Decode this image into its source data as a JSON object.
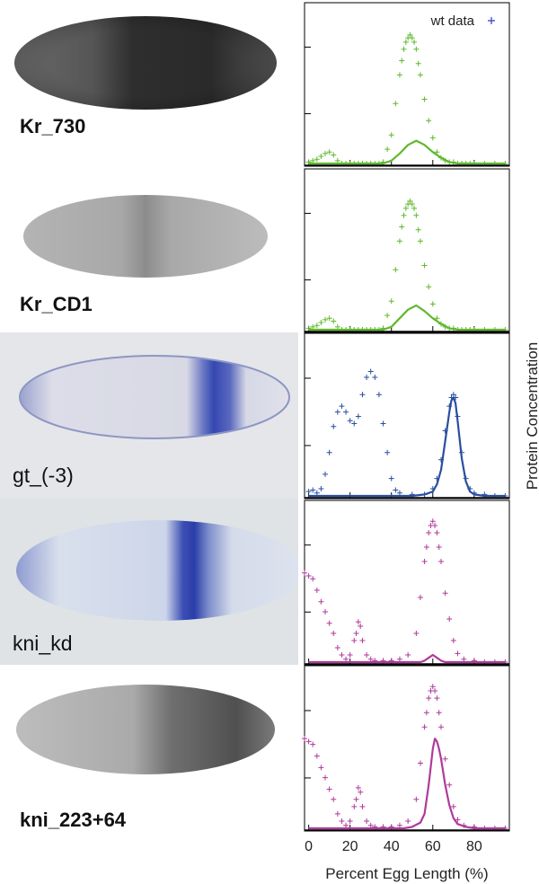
{
  "colors": {
    "green": "#5fb82e",
    "blue": "#2a4fa0",
    "magenta": "#b03a9c",
    "wt_marker": "#2a3fbf"
  },
  "legend": {
    "label": "wt data"
  },
  "axes": {
    "xlabel": "Percent Egg Length (%)",
    "ylabel": "Protein Concentration"
  },
  "panels": [
    {
      "label": "Kr_730",
      "photo_style": "dark"
    },
    {
      "label": "Kr_CD1",
      "photo_style": "light"
    },
    {
      "label": "gt_(-3)",
      "photo_style": "blue_band_70"
    },
    {
      "label": "kni_kd",
      "photo_style": "blue_band_60"
    },
    {
      "label": "kni_223+64",
      "photo_style": "gray_posterior"
    }
  ],
  "chart_data": [
    {
      "type": "line",
      "panel": "Kr_730",
      "color": "green",
      "x_ticks": [
        0,
        20,
        40,
        60,
        80
      ],
      "xlim": [
        -2,
        97
      ],
      "ylim": [
        0,
        1
      ],
      "series": [
        {
          "kind": "points",
          "x": [
            0,
            2,
            4,
            6,
            8,
            10,
            12,
            14,
            16,
            18,
            20,
            22,
            24,
            26,
            28,
            30,
            32,
            34,
            36,
            38,
            40,
            42,
            44,
            45,
            46,
            47,
            48,
            49,
            50,
            51,
            52,
            53,
            54,
            56,
            58,
            60,
            62,
            64,
            66,
            68,
            70,
            72,
            74,
            76,
            78,
            80,
            85,
            90,
            95
          ],
          "y": [
            0.01,
            0.02,
            0.03,
            0.05,
            0.07,
            0.08,
            0.06,
            0.02,
            0,
            0,
            0,
            0,
            0,
            0,
            0,
            0,
            0,
            0,
            0.01,
            0.1,
            0.2,
            0.42,
            0.62,
            0.72,
            0.8,
            0.85,
            0.88,
            0.9,
            0.88,
            0.85,
            0.8,
            0.7,
            0.62,
            0.45,
            0.3,
            0.18,
            0.08,
            0.04,
            0.02,
            0.01,
            0.01,
            0,
            0,
            0,
            0,
            0,
            0,
            0,
            0
          ]
        },
        {
          "kind": "model",
          "x": [
            0,
            10,
            20,
            30,
            36,
            40,
            44,
            48,
            52,
            56,
            60,
            64,
            68,
            72,
            80,
            95
          ],
          "y": [
            0,
            0,
            0,
            0,
            0,
            0.02,
            0.07,
            0.13,
            0.16,
            0.13,
            0.08,
            0.04,
            0.01,
            0,
            0,
            0
          ]
        }
      ]
    },
    {
      "type": "line",
      "panel": "Kr_CD1",
      "color": "green",
      "x_ticks": [
        0,
        20,
        40,
        60,
        80
      ],
      "xlim": [
        -2,
        97
      ],
      "ylim": [
        0,
        1
      ],
      "series": [
        {
          "kind": "points",
          "x": [
            0,
            2,
            4,
            6,
            8,
            10,
            12,
            14,
            16,
            18,
            20,
            22,
            24,
            26,
            28,
            30,
            32,
            34,
            36,
            38,
            40,
            42,
            44,
            45,
            46,
            47,
            48,
            49,
            50,
            51,
            52,
            53,
            54,
            56,
            58,
            60,
            62,
            64,
            66,
            68,
            70,
            72,
            74,
            76,
            78,
            80,
            85,
            90,
            95
          ],
          "y": [
            0.01,
            0.02,
            0.03,
            0.05,
            0.07,
            0.08,
            0.06,
            0.02,
            0,
            0,
            0,
            0,
            0,
            0,
            0,
            0,
            0,
            0,
            0.01,
            0.1,
            0.2,
            0.42,
            0.62,
            0.72,
            0.8,
            0.85,
            0.88,
            0.9,
            0.88,
            0.85,
            0.8,
            0.7,
            0.62,
            0.45,
            0.3,
            0.18,
            0.08,
            0.04,
            0.02,
            0.01,
            0.01,
            0,
            0,
            0,
            0,
            0,
            0,
            0,
            0
          ]
        },
        {
          "kind": "model",
          "x": [
            0,
            10,
            20,
            30,
            36,
            40,
            44,
            48,
            52,
            56,
            60,
            64,
            68,
            72,
            80,
            95
          ],
          "y": [
            0,
            0,
            0,
            0,
            0,
            0.02,
            0.08,
            0.14,
            0.17,
            0.13,
            0.08,
            0.04,
            0.01,
            0,
            0,
            0
          ]
        }
      ]
    },
    {
      "type": "line",
      "panel": "gt_(-3)",
      "color": "blue",
      "x_ticks": [
        0,
        20,
        40,
        60,
        80
      ],
      "xlim": [
        -2,
        97
      ],
      "ylim": [
        0,
        1
      ],
      "series": [
        {
          "kind": "points",
          "x": [
            0,
            2,
            4,
            6,
            8,
            10,
            12,
            14,
            16,
            18,
            20,
            22,
            24,
            26,
            28,
            30,
            32,
            34,
            36,
            38,
            40,
            42,
            44,
            50,
            56,
            60,
            62,
            64,
            66,
            68,
            69,
            70,
            71,
            72,
            74,
            76,
            78,
            80,
            85,
            90,
            95
          ],
          "y": [
            0.03,
            0.04,
            0.02,
            0.05,
            0.15,
            0.3,
            0.48,
            0.58,
            0.62,
            0.58,
            0.52,
            0.5,
            0.55,
            0.7,
            0.82,
            0.86,
            0.82,
            0.7,
            0.5,
            0.3,
            0.12,
            0.04,
            0.02,
            0.01,
            0.01,
            0.05,
            0.12,
            0.25,
            0.45,
            0.62,
            0.68,
            0.7,
            0.68,
            0.55,
            0.3,
            0.12,
            0.05,
            0.02,
            0.01,
            0,
            0
          ]
        },
        {
          "kind": "model",
          "x": [
            0,
            10,
            20,
            30,
            40,
            50,
            56,
            60,
            62,
            64,
            66,
            68,
            69,
            70,
            71,
            72,
            74,
            76,
            78,
            80,
            85,
            95
          ],
          "y": [
            0,
            0,
            0,
            0,
            0,
            0,
            0.01,
            0.03,
            0.08,
            0.18,
            0.38,
            0.58,
            0.66,
            0.68,
            0.64,
            0.52,
            0.26,
            0.1,
            0.03,
            0.01,
            0,
            0
          ]
        }
      ]
    },
    {
      "type": "line",
      "panel": "kni_kd",
      "color": "magenta",
      "x_ticks": [
        0,
        20,
        40,
        60,
        80
      ],
      "xlim": [
        -2,
        97
      ],
      "ylim": [
        0,
        1
      ],
      "series": [
        {
          "kind": "points",
          "x": [
            -2,
            0,
            2,
            4,
            6,
            8,
            10,
            12,
            14,
            16,
            18,
            20,
            22,
            23,
            24,
            25,
            26,
            28,
            30,
            32,
            36,
            40,
            44,
            48,
            52,
            54,
            56,
            57,
            58,
            59,
            60,
            61,
            62,
            63,
            64,
            66,
            68,
            70,
            72,
            75,
            80,
            85,
            90,
            95
          ],
          "y": [
            0.62,
            0.6,
            0.58,
            0.5,
            0.42,
            0.35,
            0.27,
            0.2,
            0.1,
            0.05,
            0.02,
            0.05,
            0.15,
            0.2,
            0.28,
            0.25,
            0.15,
            0.05,
            0.02,
            0.01,
            0.01,
            0.01,
            0.02,
            0.05,
            0.2,
            0.45,
            0.7,
            0.8,
            0.9,
            0.95,
            0.98,
            0.95,
            0.9,
            0.8,
            0.7,
            0.48,
            0.3,
            0.15,
            0.06,
            0.02,
            0.01,
            0,
            0,
            0
          ]
        },
        {
          "kind": "model",
          "x": [
            0,
            10,
            20,
            30,
            40,
            50,
            54,
            56,
            58,
            60,
            62,
            64,
            66,
            70,
            80,
            95
          ],
          "y": [
            0,
            0,
            0,
            0,
            0,
            0,
            0,
            0.01,
            0.03,
            0.05,
            0.03,
            0.01,
            0,
            0,
            0,
            0
          ]
        }
      ]
    },
    {
      "type": "line",
      "panel": "kni_223+64",
      "color": "magenta",
      "x_ticks": [
        0,
        20,
        40,
        60,
        80
      ],
      "xlim": [
        -2,
        97
      ],
      "ylim": [
        0,
        1
      ],
      "series": [
        {
          "kind": "points",
          "x": [
            -2,
            0,
            2,
            4,
            6,
            8,
            10,
            12,
            14,
            16,
            18,
            20,
            22,
            23,
            24,
            25,
            26,
            28,
            30,
            32,
            36,
            40,
            44,
            48,
            52,
            54,
            56,
            57,
            58,
            59,
            60,
            61,
            62,
            63,
            64,
            66,
            68,
            70,
            72,
            75,
            80,
            85,
            90,
            95
          ],
          "y": [
            0.62,
            0.6,
            0.58,
            0.5,
            0.42,
            0.35,
            0.27,
            0.2,
            0.1,
            0.05,
            0.02,
            0.05,
            0.15,
            0.2,
            0.28,
            0.25,
            0.15,
            0.05,
            0.02,
            0.01,
            0.01,
            0.01,
            0.02,
            0.05,
            0.2,
            0.45,
            0.7,
            0.8,
            0.9,
            0.95,
            0.98,
            0.95,
            0.9,
            0.8,
            0.7,
            0.48,
            0.3,
            0.15,
            0.06,
            0.02,
            0.01,
            0,
            0,
            0
          ]
        },
        {
          "kind": "model",
          "x": [
            0,
            10,
            20,
            30,
            40,
            46,
            50,
            54,
            56,
            58,
            60,
            61,
            62,
            63,
            64,
            66,
            68,
            70,
            72,
            76,
            80,
            95
          ],
          "y": [
            0,
            0,
            0,
            0,
            0,
            0,
            0.01,
            0.04,
            0.1,
            0.3,
            0.55,
            0.62,
            0.6,
            0.55,
            0.48,
            0.3,
            0.16,
            0.07,
            0.03,
            0.01,
            0,
            0
          ]
        }
      ]
    }
  ]
}
